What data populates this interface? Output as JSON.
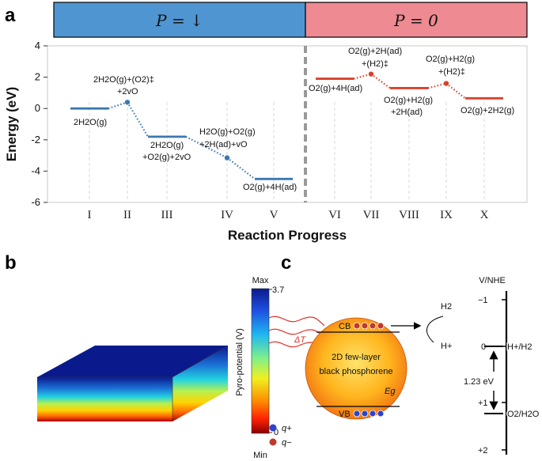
{
  "panel_a": {
    "letter": "a",
    "header_left": "P = ↓",
    "header_right": "P = 0",
    "header_left_color": "#4f95d1",
    "header_right_color": "#ee8a92",
    "ylabel": "Energy (eV)",
    "xlabel": "Reaction Progress",
    "yticks": [
      "4",
      "2",
      "0",
      "-2",
      "-4",
      "-6"
    ],
    "state_labels": [
      "2H2O(g)",
      "2H2O(g)+(O2)‡",
      "+2vO",
      "2H2O(g)",
      "+O2(g)+2vO",
      "H2O(g)+O2(g)",
      "+2H(ad)+vO",
      "O2(g)+4H(ad)",
      "O2(g)+4H(ad)",
      "O2(g)+2H(ad)",
      "+(H2)‡",
      "O2(g)+H2(g)",
      "+2H(ad)",
      "O2(g)+H2(g)",
      "+(H2)‡",
      "O2(g)+2H2(g)"
    ]
  },
  "chart_data": {
    "type": "line",
    "title": "",
    "xlabel": "Reaction Progress",
    "ylabel": "Energy (eV)",
    "ylim": [
      -6,
      4
    ],
    "categories": [
      "I",
      "II",
      "III",
      "IV",
      "V",
      "VI",
      "VII",
      "VIII",
      "IX",
      "X"
    ],
    "series": [
      {
        "name": "P = ↓",
        "color": "#3b78b0",
        "x": [
          "I",
          "II",
          "III",
          "IV",
          "V"
        ],
        "values": [
          0,
          0.4,
          -1.8,
          -3.15,
          -4.5
        ]
      },
      {
        "name": "P = 0",
        "color": "#d8412c",
        "x": [
          "VI",
          "VII",
          "VIII",
          "IX",
          "X"
        ],
        "values": [
          1.9,
          2.2,
          1.3,
          1.6,
          0.65
        ]
      }
    ]
  },
  "panel_b": {
    "letter": "b",
    "colorbar_max": "Max",
    "colorbar_min": "Min",
    "colorbar_top_value": "3.7",
    "colorbar_bottom_value": "0",
    "colorbar_label": "Pyro-potential (V)"
  },
  "panel_c": {
    "letter": "c",
    "delta_t": "ΔT",
    "sphere_line1": "2D few-layer",
    "sphere_line2": "black phosphorene",
    "eg": "Eg",
    "cb": "CB",
    "vb": "VB",
    "h2": "H2",
    "hplus": "H+",
    "q_plus": "q+",
    "q_minus": "q−",
    "scale_title": "V/NHE",
    "scale_ticks": [
      "−1",
      "0",
      "+1",
      "+2"
    ],
    "redox1": "H+/H2",
    "redox2": "O2/H2O",
    "gap": "1.23 eV"
  }
}
